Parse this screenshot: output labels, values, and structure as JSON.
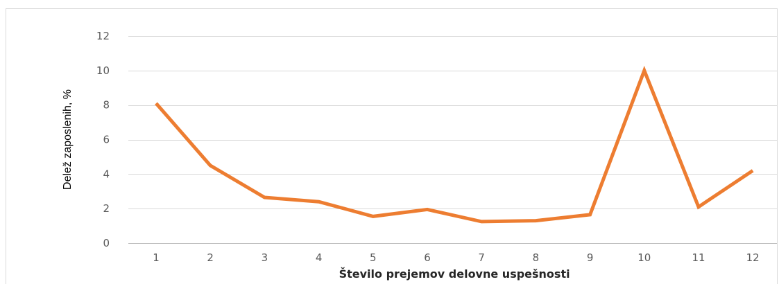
{
  "chart_data": {
    "type": "line",
    "title": "",
    "xlabel": "Število prejemov delovne uspešnosti",
    "ylabel": "Delež zaposlenih, %",
    "x": [
      "1",
      "2",
      "3",
      "4",
      "5",
      "6",
      "7",
      "8",
      "9",
      "10",
      "11",
      "12"
    ],
    "series": [
      {
        "values": [
          8.1,
          4.5,
          2.65,
          2.4,
          1.55,
          1.95,
          1.25,
          1.3,
          1.65,
          10.0,
          2.1,
          4.2
        ],
        "color": "#ED7D31"
      }
    ],
    "ylim": [
      0,
      12
    ],
    "yticks": [
      "0",
      "2",
      "4",
      "6",
      "8",
      "10",
      "12"
    ],
    "grid": true,
    "legend": "none"
  }
}
